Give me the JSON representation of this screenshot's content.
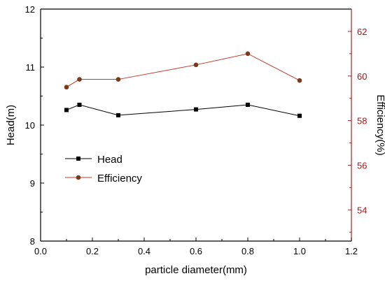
{
  "chart_data": {
    "type": "line",
    "xlabel": "particle diameter(mm)",
    "ylabel_left": "Head(m)",
    "ylabel_right": "Efficiency(%)",
    "xlim": [
      0.0,
      1.2
    ],
    "ylim_left": [
      8,
      12
    ],
    "ylim_right": [
      52.6,
      63.0
    ],
    "x_ticks": [
      "0.0",
      "0.2",
      "0.4",
      "0.6",
      "0.8",
      "1.0",
      "1.2"
    ],
    "y_left_ticks": [
      "8",
      "9",
      "10",
      "11",
      "12"
    ],
    "y_right_ticks": [
      "54",
      "56",
      "58",
      "60",
      "62"
    ],
    "legend_position": "left-middle",
    "series": [
      {
        "name": "Head",
        "axis": "left",
        "marker": "square",
        "x": [
          0.1,
          0.15,
          0.3,
          0.6,
          0.8,
          1.0
        ],
        "values": [
          10.26,
          10.35,
          10.17,
          10.27,
          10.35,
          10.16
        ]
      },
      {
        "name": "Efficiency",
        "axis": "right",
        "marker": "circle",
        "x": [
          0.1,
          0.15,
          0.3,
          0.6,
          0.8,
          1.0
        ],
        "values": [
          59.5,
          59.85,
          59.85,
          60.5,
          61.0,
          59.8
        ]
      }
    ]
  },
  "colors": {
    "head_line": "#000000",
    "head_marker": "#000000",
    "eff_line": "#c0392b",
    "eff_marker": "#7a3a1a",
    "right_axis": "#b02020"
  }
}
